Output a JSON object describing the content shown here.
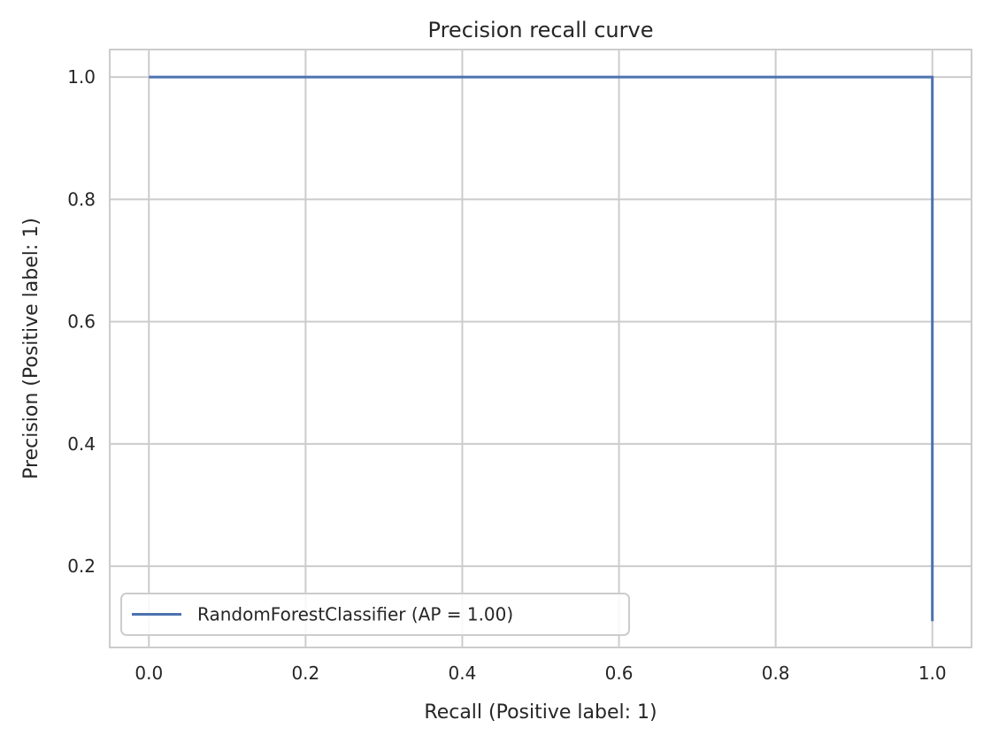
{
  "chart_data": {
    "type": "line",
    "title": "Precision recall curve",
    "xlabel": "Recall (Positive label: 1)",
    "ylabel": "Precision (Positive label: 1)",
    "xlim": [
      -0.05,
      1.05
    ],
    "ylim": [
      0.067,
      1.045
    ],
    "xticks": [
      0.0,
      0.2,
      0.4,
      0.6,
      0.8,
      1.0
    ],
    "xtick_labels": [
      "0.0",
      "0.2",
      "0.4",
      "0.6",
      "0.8",
      "1.0"
    ],
    "yticks": [
      0.2,
      0.4,
      0.6,
      0.8,
      1.0
    ],
    "ytick_labels": [
      "0.2",
      "0.4",
      "0.6",
      "0.8",
      "1.0"
    ],
    "grid": true,
    "legend_position": "lower-left",
    "series": [
      {
        "name": "RandomForestClassifier (AP = 1.00)",
        "color": "#4c72b0",
        "step": true,
        "x": [
          0.0,
          1.0,
          1.0
        ],
        "y": [
          1.0,
          1.0,
          0.11
        ]
      }
    ]
  }
}
